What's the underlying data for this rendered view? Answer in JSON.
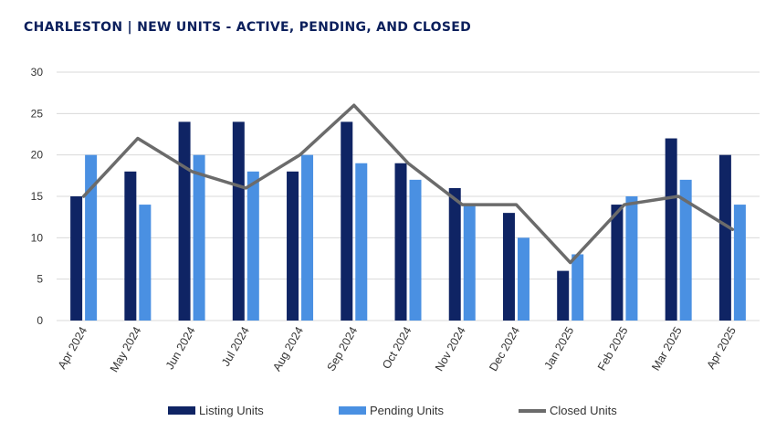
{
  "title": "CHARLESTON  |  NEW UNITS - ACTIVE, PENDING, AND CLOSED",
  "colors": {
    "listing": "#0f2464",
    "pending": "#4a90e2",
    "closed": "#6b6b6b",
    "grid": "#d9d9d9",
    "axis_text": "#333333"
  },
  "chart_data": {
    "type": "bar",
    "categories": [
      "Apr 2024",
      "May 2024",
      "Jun 2024",
      "Jul 2024",
      "Aug 2024",
      "Sep 2024",
      "Oct 2024",
      "Nov 2024",
      "Dec 2024",
      "Jan 2025",
      "Feb 2025",
      "Mar 2025",
      "Apr 2025"
    ],
    "series": [
      {
        "name": "Listing Units",
        "type": "bar",
        "values": [
          15,
          18,
          24,
          24,
          18,
          24,
          19,
          16,
          13,
          6,
          14,
          22,
          20
        ]
      },
      {
        "name": "Pending Units",
        "type": "bar",
        "values": [
          20,
          14,
          20,
          18,
          20,
          19,
          17,
          14,
          10,
          8,
          15,
          17,
          14
        ]
      },
      {
        "name": "Closed Units",
        "type": "line",
        "values": [
          15,
          22,
          18,
          16,
          20,
          26,
          19,
          14,
          14,
          7,
          14,
          15,
          11
        ]
      }
    ],
    "ylim": [
      0,
      30
    ],
    "yticks": [
      "0",
      "5",
      "10",
      "15",
      "20",
      "25",
      "30"
    ],
    "grid": true,
    "legend_position": "bottom"
  }
}
